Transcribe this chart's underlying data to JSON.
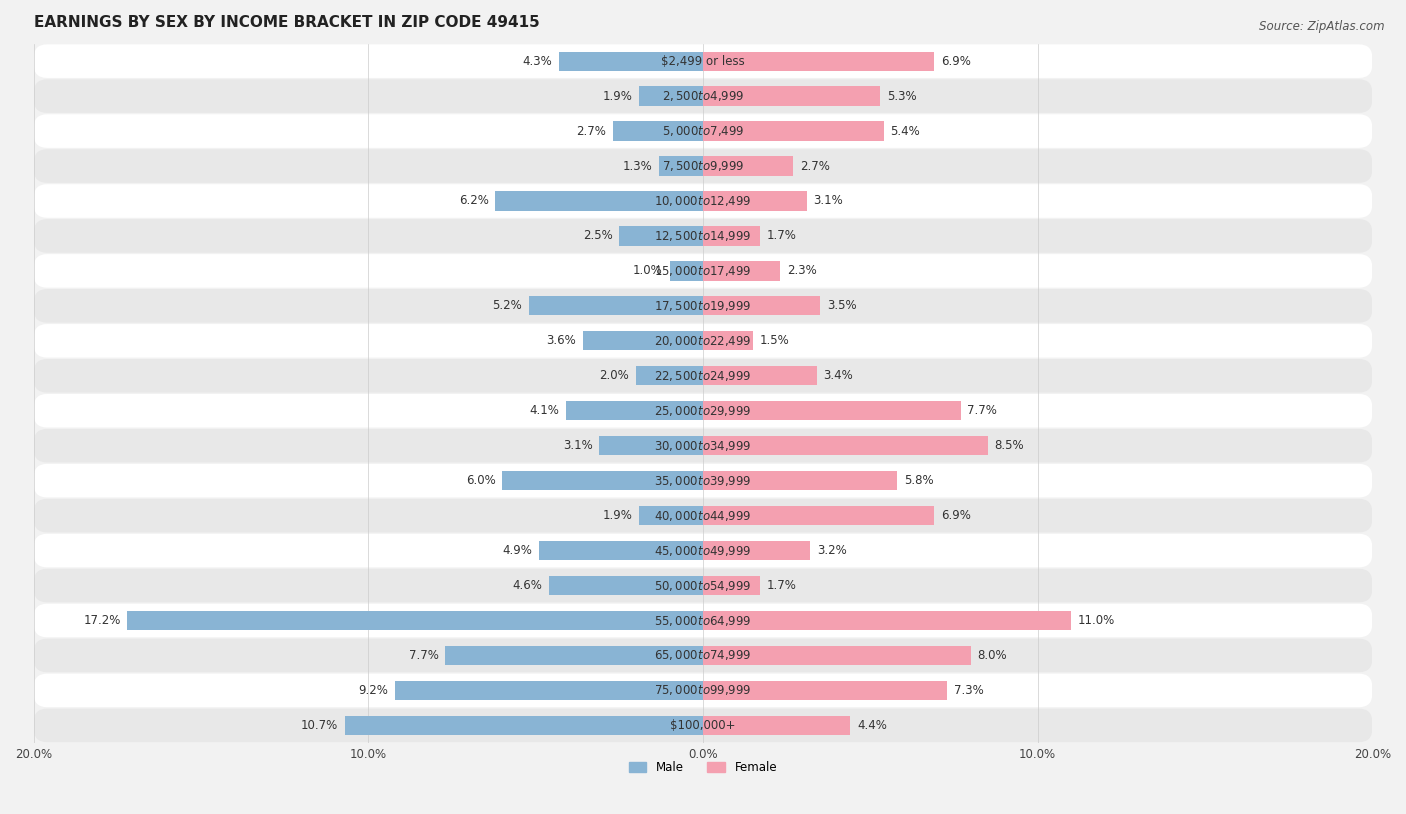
{
  "title": "EARNINGS BY SEX BY INCOME BRACKET IN ZIP CODE 49415",
  "source": "Source: ZipAtlas.com",
  "categories": [
    "$2,499 or less",
    "$2,500 to $4,999",
    "$5,000 to $7,499",
    "$7,500 to $9,999",
    "$10,000 to $12,499",
    "$12,500 to $14,999",
    "$15,000 to $17,499",
    "$17,500 to $19,999",
    "$20,000 to $22,499",
    "$22,500 to $24,999",
    "$25,000 to $29,999",
    "$30,000 to $34,999",
    "$35,000 to $39,999",
    "$40,000 to $44,999",
    "$45,000 to $49,999",
    "$50,000 to $54,999",
    "$55,000 to $64,999",
    "$65,000 to $74,999",
    "$75,000 to $99,999",
    "$100,000+"
  ],
  "male_values": [
    4.3,
    1.9,
    2.7,
    1.3,
    6.2,
    2.5,
    1.0,
    5.2,
    3.6,
    2.0,
    4.1,
    3.1,
    6.0,
    1.9,
    4.9,
    4.6,
    17.2,
    7.7,
    9.2,
    10.7
  ],
  "female_values": [
    6.9,
    5.3,
    5.4,
    2.7,
    3.1,
    1.7,
    2.3,
    3.5,
    1.5,
    3.4,
    7.7,
    8.5,
    5.8,
    6.9,
    3.2,
    1.7,
    11.0,
    8.0,
    7.3,
    4.4
  ],
  "male_color": "#89b4d4",
  "female_color": "#f4a0b0",
  "male_label": "Male",
  "female_label": "Female",
  "xlim": 20.0,
  "bar_height": 0.55,
  "bg_color": "#f2f2f2",
  "row_color_odd": "#ffffff",
  "row_color_even": "#e8e8e8",
  "title_fontsize": 11,
  "label_fontsize": 8.5,
  "tick_fontsize": 8.5,
  "source_fontsize": 8.5
}
